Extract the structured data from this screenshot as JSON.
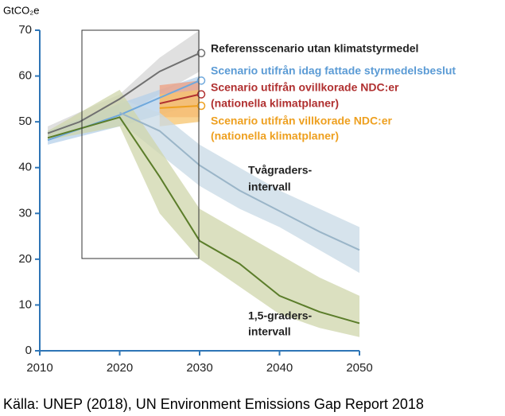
{
  "chart_data": {
    "type": "line",
    "ylabel": "GtCO₂e",
    "source": "Källa: UNEP (2018), UN Environment Emissions Gap Report 2018",
    "xlim": [
      2010,
      2050
    ],
    "xticks": [
      2010,
      2020,
      2030,
      2040,
      2050
    ],
    "ylim": [
      0,
      70
    ],
    "yticks": [
      0,
      10,
      20,
      30,
      40,
      50,
      60,
      70
    ],
    "axis_color": "#2e75b6",
    "series": [
      {
        "label": [
          "Referensscenario utan klimatstyrmedel"
        ],
        "label_color": "#222222",
        "color": "#707070",
        "band_color": "#d6d6d6",
        "end_marker": true,
        "x": [
          2011,
          2015,
          2020,
          2025,
          2030
        ],
        "values": [
          47.5,
          50,
          55,
          61,
          65
        ],
        "band_x": [
          2011,
          2020,
          2025,
          2030
        ],
        "band_low": [
          46,
          51,
          56,
          61
        ],
        "band_high": [
          49,
          56,
          64,
          70
        ]
      },
      {
        "label": [
          "Scenario utifrån idag fattade styrmedelsbeslut"
        ],
        "label_color": "#5b9bd5",
        "color": "#6fa8dc",
        "band_color": "#b5d0ea",
        "end_marker": true,
        "x": [
          2011,
          2020,
          2030
        ],
        "values": [
          46,
          51.5,
          59
        ],
        "band_x": [
          2011,
          2020,
          2030
        ],
        "band_low": [
          45,
          49,
          54
        ],
        "band_high": [
          48,
          54,
          60
        ]
      },
      {
        "label": [
          "Scenario utifrån ovillkorade NDC:er",
          "(nationella klimatplaner)"
        ],
        "label_color": "#b03030",
        "color": "#b03030",
        "band_color": "#ef9f80",
        "end_marker": true,
        "x": [
          2025,
          2030
        ],
        "values": [
          54,
          56
        ],
        "band_x": [
          2025,
          2030
        ],
        "band_low": [
          51,
          51
        ],
        "band_high": [
          58,
          59
        ]
      },
      {
        "label": [
          "Scenario utifrån villkorade NDC:er",
          "(nationella klimatplaner)"
        ],
        "label_color": "#eea020",
        "color": "#eea020",
        "band_color": "#f7c46e",
        "end_marker": true,
        "x": [
          2025,
          2030
        ],
        "values": [
          53,
          53.5
        ],
        "band_x": [
          2025,
          2030
        ],
        "band_low": [
          49,
          50
        ],
        "band_high": [
          56,
          57
        ]
      },
      {
        "label": [
          "Tvågraders-",
          "intervall"
        ],
        "label_color": "#222222",
        "color": "#9ab5c8",
        "band_color": "#c8dae6",
        "end_marker": false,
        "x": [
          2020,
          2025,
          2030,
          2035,
          2040,
          2045,
          2050
        ],
        "values": [
          52,
          48,
          40.5,
          35,
          30.5,
          26,
          22
        ],
        "band_x": [
          2020,
          2025,
          2030,
          2035,
          2040,
          2045,
          2050
        ],
        "band_low": [
          50,
          43,
          36,
          31,
          27,
          22,
          17
        ],
        "band_high": [
          55,
          52,
          45,
          40,
          35,
          31,
          27
        ]
      },
      {
        "label": [
          "1,5-graders-",
          "intervall"
        ],
        "label_color": "#222222",
        "color": "#5b7d2a",
        "band_color": "#cfd6ab",
        "end_marker": false,
        "x": [
          2011,
          2020,
          2025,
          2030,
          2035,
          2040,
          2045,
          2050
        ],
        "values": [
          46.5,
          51,
          38,
          24,
          19,
          12,
          8.5,
          6
        ],
        "band_x": [
          2011,
          2020,
          2025,
          2030,
          2035,
          2040,
          2045,
          2050
        ],
        "band_low": [
          46,
          49,
          30,
          20,
          14,
          8,
          5,
          3
        ],
        "band_high": [
          48,
          57,
          44,
          31,
          26,
          21,
          16,
          12
        ]
      }
    ]
  }
}
